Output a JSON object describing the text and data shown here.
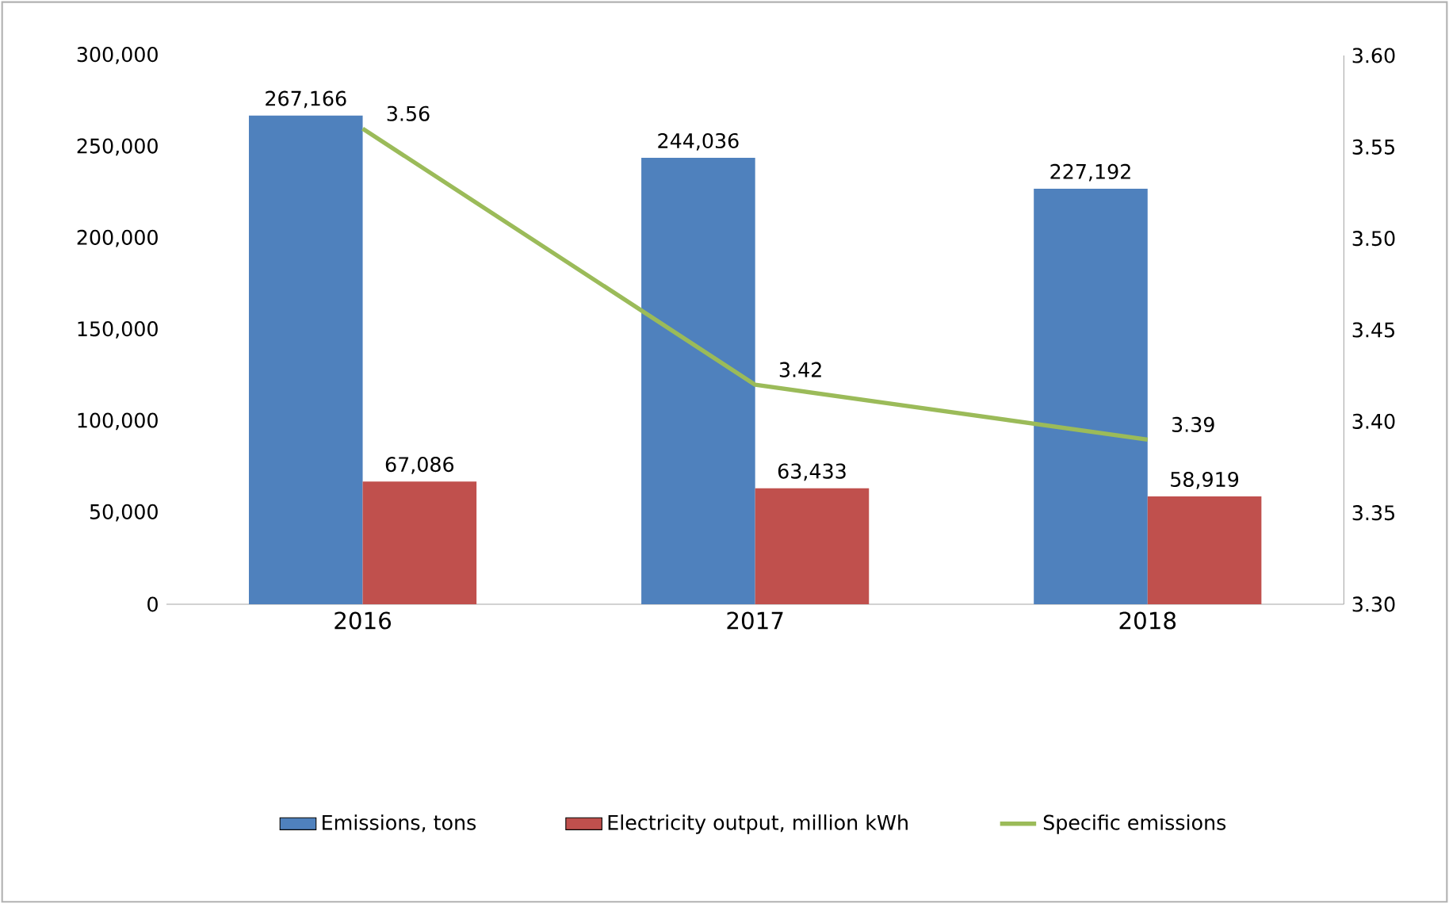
{
  "chart_data": {
    "type": "bar",
    "categories": [
      "2016",
      "2017",
      "2018"
    ],
    "series": [
      {
        "name": "Emissions, tons",
        "color": "#4f81bd",
        "values": [
          267166,
          244036,
          227192
        ],
        "value_labels": [
          "267,166",
          "244,036",
          "227,192"
        ]
      },
      {
        "name": "Electricity output, million kWh",
        "color": "#c0504d",
        "values": [
          67086,
          63433,
          58919
        ],
        "value_labels": [
          "67,086",
          "63,433",
          "58,919"
        ]
      },
      {
        "name": "Specific emissions",
        "color": "#9bbb59",
        "type": "line",
        "axis": "y2",
        "values": [
          3.56,
          3.42,
          3.39
        ],
        "value_labels": [
          "3.56",
          "3.42",
          "3.39"
        ]
      }
    ],
    "ylim": [
      0,
      300000
    ],
    "yticks": [
      {
        "value": 0,
        "label": "0"
      },
      {
        "value": 50000,
        "label": "50,000"
      },
      {
        "value": 100000,
        "label": "100,000"
      },
      {
        "value": 150000,
        "label": "150,000"
      },
      {
        "value": 200000,
        "label": "200,000"
      },
      {
        "value": 250000,
        "label": "250,000"
      },
      {
        "value": 300000,
        "label": "300,000"
      }
    ],
    "y2lim": [
      3.3,
      3.6
    ],
    "y2ticks": [
      {
        "value": 3.3,
        "label": "3.30"
      },
      {
        "value": 3.35,
        "label": "3.35"
      },
      {
        "value": 3.4,
        "label": "3.40"
      },
      {
        "value": 3.45,
        "label": "3.45"
      },
      {
        "value": 3.5,
        "label": "3.50"
      },
      {
        "value": 3.55,
        "label": "3.55"
      },
      {
        "value": 3.6,
        "label": "3.60"
      }
    ],
    "legend": "bottom",
    "grid": false
  }
}
